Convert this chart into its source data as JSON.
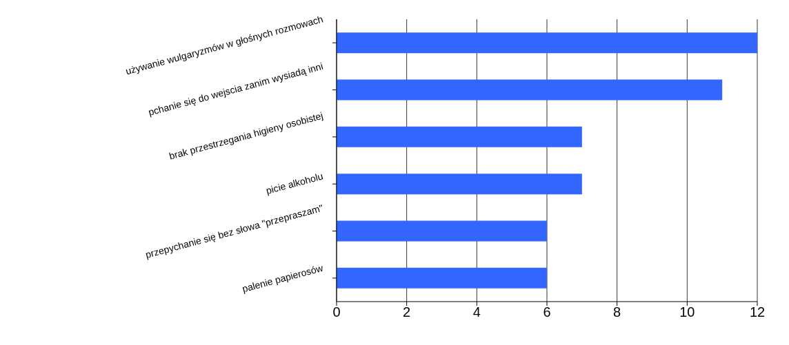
{
  "chart_data": {
    "type": "bar",
    "orientation": "horizontal",
    "categories": [
      "używanie wulgaryzmów w głośnych rozmowach",
      "pchanie się do wejscia zanim wysiadą inni",
      "brak przestrzegania higieny osobistej",
      "picie alkoholu",
      "przepychanie się bez słowa \"przepraszam\"",
      "palenie papierosów"
    ],
    "values": [
      12,
      11,
      7,
      7,
      6,
      6
    ],
    "color": "#3366ff",
    "xlim": [
      0,
      12
    ],
    "xticks": [
      0,
      2,
      4,
      6,
      8,
      10,
      12
    ],
    "grid": "x",
    "legend": false
  }
}
